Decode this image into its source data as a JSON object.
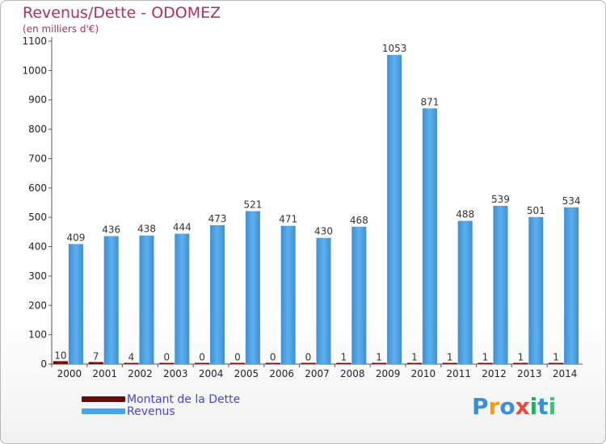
{
  "chart_data": {
    "type": "bar",
    "title": "Revenus/Dette - ODOMEZ",
    "subtitle": "(en milliers d'€)",
    "categories": [
      "2000",
      "2001",
      "2002",
      "2003",
      "2004",
      "2005",
      "2006",
      "2007",
      "2008",
      "2009",
      "2010",
      "2011",
      "2012",
      "2013",
      "2014"
    ],
    "series": [
      {
        "name": "Montant de la Dette",
        "color": "#6b0a0a",
        "values": [
          10,
          7,
          4,
          0,
          0,
          0,
          0,
          0,
          1,
          1,
          1,
          1,
          1,
          1,
          1
        ]
      },
      {
        "name": "Revenus",
        "color": "#4da3e6",
        "values": [
          409,
          436,
          438,
          444,
          473,
          521,
          471,
          430,
          468,
          1053,
          871,
          488,
          539,
          501,
          534
        ]
      }
    ],
    "ylim": [
      0,
      1100
    ],
    "yticks": [
      0,
      100,
      200,
      300,
      400,
      500,
      600,
      700,
      800,
      900,
      1000,
      1100
    ],
    "grid": false,
    "legend_position": "bottom-left"
  },
  "logo": {
    "letters": [
      "P",
      "r",
      "o",
      "x",
      "i",
      "t",
      "i"
    ],
    "colors": [
      "#3a8fd8",
      "#f39c12",
      "#3a8fd8",
      "#e74c3c",
      "#27ae60",
      "#3a8fd8",
      "#2ecc71"
    ]
  }
}
